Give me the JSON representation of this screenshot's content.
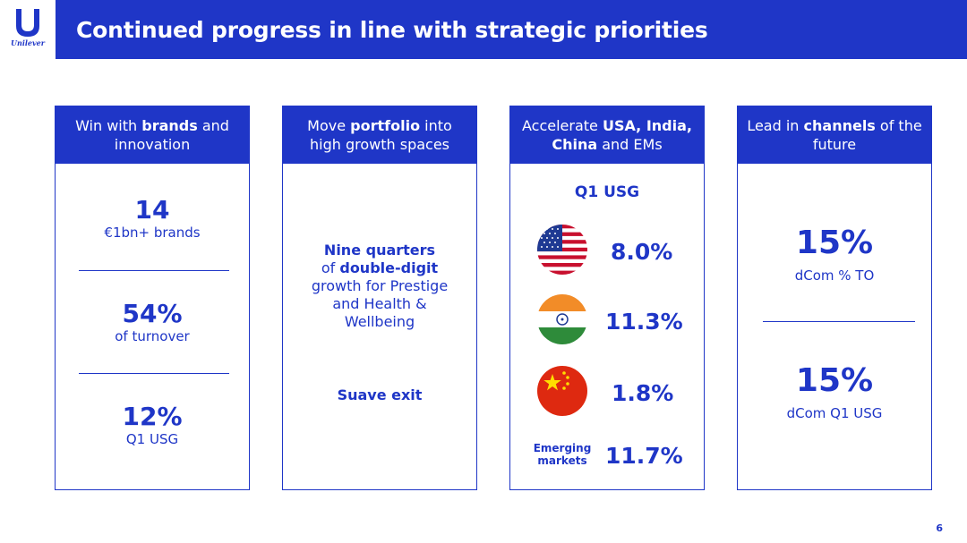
{
  "brand": {
    "name": "Unilever"
  },
  "title": "Continued progress in line with strategic priorities",
  "columns": [
    {
      "head": {
        "pre": "Win with ",
        "bold": "brands",
        "post": " and innovation"
      },
      "stats": [
        {
          "value": "14",
          "label": "€1bn+ brands"
        },
        {
          "value": "54%",
          "label": "of turnover"
        },
        {
          "value": "12%",
          "label": "Q1 USG"
        }
      ]
    },
    {
      "head": {
        "pre": "Move ",
        "bold": "portfolio",
        "post": " into high growth spaces"
      },
      "text": {
        "bold1": "Nine quarters",
        "of": "of ",
        "bold2": "double-digit",
        "rest": "growth for Prestige and Health & Wellbeing",
        "exit": "Suave exit"
      }
    },
    {
      "head": {
        "pre": "Accelerate ",
        "bold": "USA, India, China",
        "post": " and EMs"
      },
      "subtitle": "Q1 USG",
      "rows": [
        {
          "flag": "usa-flag-icon",
          "value": "8.0%"
        },
        {
          "flag": "india-flag-icon",
          "value": "11.3%"
        },
        {
          "flag": "china-flag-icon",
          "value": "1.8%"
        },
        {
          "label_line1": "Emerging",
          "label_line2": "markets",
          "value": "11.7%"
        }
      ]
    },
    {
      "head": {
        "pre": "Lead in ",
        "bold": "channels",
        "post": " of the future"
      },
      "stats": [
        {
          "value": "15%",
          "label": "dCom % TO"
        },
        {
          "value": "15%",
          "label": "dCom Q1 USG"
        }
      ]
    }
  ],
  "page_number": "6",
  "colors": {
    "brand_blue": "#1f36c7",
    "white": "#ffffff"
  }
}
